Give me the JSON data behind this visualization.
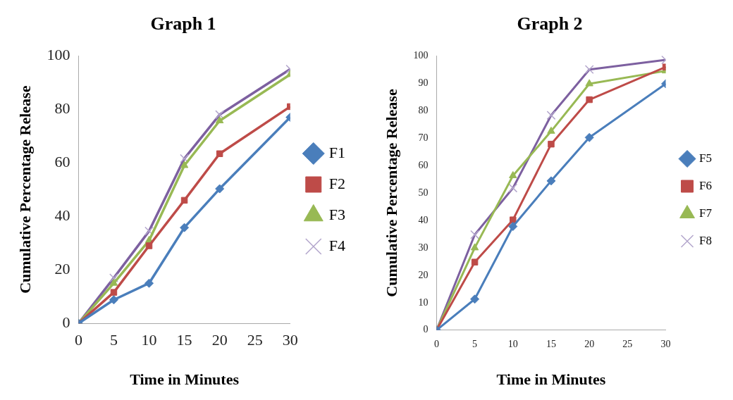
{
  "chart_data": [
    {
      "type": "line",
      "title": "Graph 1",
      "xlabel": "Time in Minutes",
      "ylabel": "Cumulative Percentage Release",
      "x": [
        0,
        5,
        10,
        15,
        20,
        30
      ],
      "xlim": [
        0,
        30
      ],
      "xticks": [
        0,
        5,
        10,
        15,
        20,
        25,
        30
      ],
      "ylim": [
        0,
        100
      ],
      "yticks": [
        0,
        20,
        40,
        60,
        80,
        100
      ],
      "grid": false,
      "legend": "right",
      "line_style": "solid",
      "series": [
        {
          "name": "F1",
          "color": "#4a7ebb",
          "marker": "diamond",
          "values": [
            0,
            8.8,
            15,
            35.8,
            50.3,
            77
          ]
        },
        {
          "name": "F2",
          "color": "#be4b48",
          "marker": "square",
          "values": [
            0,
            11.6,
            29,
            46,
            63.4,
            81
          ]
        },
        {
          "name": "F3",
          "color": "#98b954",
          "marker": "triangle",
          "values": [
            0,
            15,
            31,
            59,
            75.7,
            93
          ]
        },
        {
          "name": "F4",
          "color": "#7d60a0",
          "marker": "cross",
          "values": [
            0,
            17,
            34.5,
            61.6,
            78,
            95
          ]
        }
      ]
    },
    {
      "type": "line",
      "title": "Graph 2",
      "xlabel": "Time in Minutes",
      "ylabel": "Cumulative Percentage Release",
      "x": [
        0,
        5,
        10,
        15,
        20,
        30
      ],
      "xlim": [
        0,
        30
      ],
      "xticks": [
        0,
        5,
        10,
        15,
        20,
        25,
        30
      ],
      "ylim": [
        0,
        100
      ],
      "yticks": [
        0,
        10,
        20,
        30,
        40,
        50,
        60,
        70,
        80,
        90,
        100
      ],
      "grid": false,
      "legend": "right",
      "line_style": "solid",
      "series": [
        {
          "name": "F5",
          "color": "#4a7ebb",
          "marker": "diamond",
          "values": [
            0,
            11.3,
            37.8,
            54.4,
            70.2,
            89.8
          ]
        },
        {
          "name": "F6",
          "color": "#be4b48",
          "marker": "square",
          "values": [
            0,
            24.8,
            40.2,
            67.8,
            84,
            95.9
          ]
        },
        {
          "name": "F7",
          "color": "#98b954",
          "marker": "triangle",
          "values": [
            0,
            30,
            56.3,
            72.5,
            89.8,
            94.5
          ]
        },
        {
          "name": "F8",
          "color": "#7d60a0",
          "marker": "cross",
          "values": [
            0,
            34.8,
            51.8,
            78.3,
            95,
            98.5
          ]
        }
      ]
    }
  ]
}
